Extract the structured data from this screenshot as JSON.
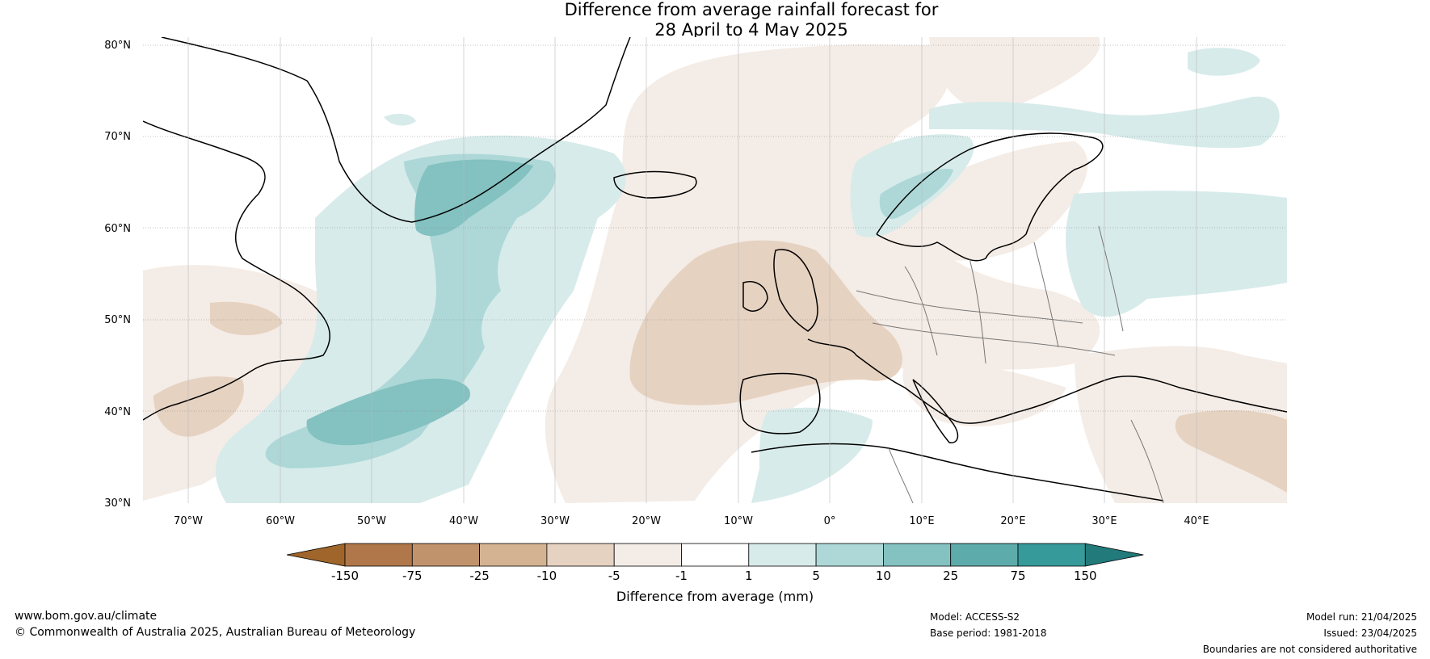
{
  "title": {
    "line1": "Difference from average rainfall forecast for",
    "line2": "28 April to 4 May 2025"
  },
  "map": {
    "lat_labels": [
      "80°N",
      "70°N",
      "60°N",
      "50°N",
      "40°N",
      "30°N"
    ],
    "lon_labels": [
      "70°W",
      "60°W",
      "50°W",
      "40°W",
      "30°W",
      "20°W",
      "10°W",
      "0°",
      "10°E",
      "20°E",
      "30°E",
      "40°E"
    ],
    "lat_range": [
      30,
      80
    ],
    "lon_range": [
      -75,
      50
    ]
  },
  "colorbar": {
    "label": "Difference from average (mm)",
    "ticks": [
      "-150",
      "-75",
      "-25",
      "-10",
      "-5",
      "-1",
      "1",
      "5",
      "10",
      "25",
      "75",
      "150"
    ],
    "colors": [
      "#a0652b",
      "#b0784a",
      "#c1936c",
      "#d4b392",
      "#e6d2c1",
      "#f4ece6",
      "#ffffff",
      "#d7ebea",
      "#aed8d8",
      "#84c1c1",
      "#5dabab",
      "#369a9a",
      "#227a7a"
    ]
  },
  "footer": {
    "website": "www.bom.gov.au/climate",
    "copyright": "© Commonwealth of Australia 2025, Australian Bureau of Meteorology",
    "model": "Model: ACCESS-S2",
    "base_period": "Base period: 1981-2018",
    "model_run": "Model run: 21/04/2025",
    "issued": "Issued: 23/04/2025",
    "boundaries": "Boundaries are not considered authoritative"
  }
}
